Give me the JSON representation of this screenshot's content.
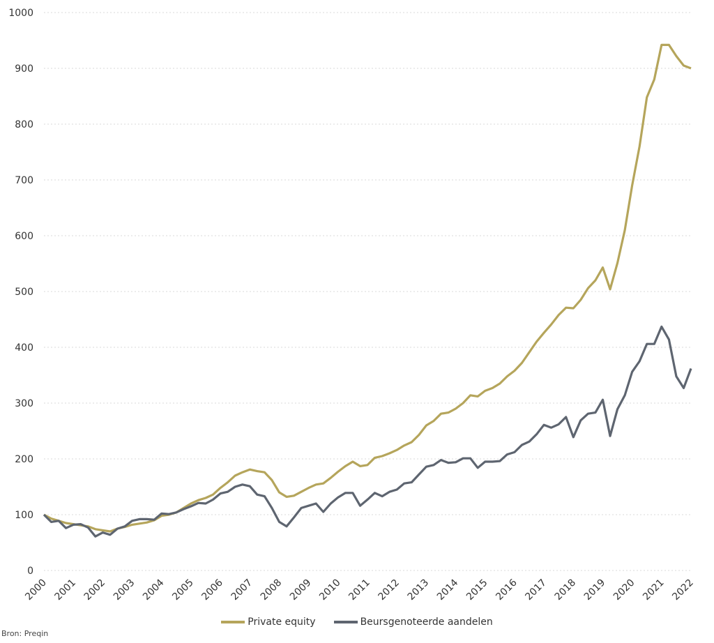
{
  "chart_data": {
    "type": "line",
    "title": "",
    "xlabel": "",
    "ylabel": "",
    "ylim": [
      0,
      1000
    ],
    "yticks": [
      0,
      100,
      200,
      300,
      400,
      500,
      600,
      700,
      800,
      900,
      1000
    ],
    "xlim": [
      2000,
      2022
    ],
    "xticks": [
      "2000",
      "2001",
      "2002",
      "2003",
      "2004",
      "2005",
      "2006",
      "2007",
      "2008",
      "2009",
      "2010",
      "2011",
      "2012",
      "2013",
      "2014",
      "2015",
      "2016",
      "2017",
      "2018",
      "2019",
      "2020",
      "2021",
      "2022"
    ],
    "grid": "horizontal dotted",
    "legend_position": "bottom",
    "x": [
      2000,
      2000.25,
      2000.5,
      2000.75,
      2001,
      2001.25,
      2001.5,
      2001.75,
      2002,
      2002.25,
      2002.5,
      2002.75,
      2003,
      2003.25,
      2003.5,
      2003.75,
      2004,
      2004.25,
      2004.5,
      2004.75,
      2005,
      2005.25,
      2005.5,
      2005.75,
      2006,
      2006.25,
      2006.5,
      2006.75,
      2007,
      2007.25,
      2007.5,
      2007.75,
      2008,
      2008.25,
      2008.5,
      2008.75,
      2009,
      2009.25,
      2009.5,
      2009.75,
      2010,
      2010.25,
      2010.5,
      2010.75,
      2011,
      2011.25,
      2011.5,
      2011.75,
      2012,
      2012.25,
      2012.5,
      2012.75,
      2013,
      2013.25,
      2013.5,
      2013.75,
      2014,
      2014.25,
      2014.5,
      2014.75,
      2015,
      2015.25,
      2015.5,
      2015.75,
      2016,
      2016.25,
      2016.5,
      2016.75,
      2017,
      2017.25,
      2017.5,
      2017.75,
      2018,
      2018.25,
      2018.5,
      2018.75,
      2019,
      2019.25,
      2019.5,
      2019.75,
      2020,
      2020.25,
      2020.5,
      2020.75,
      2021,
      2021.25,
      2021.5,
      2021.75,
      2022
    ],
    "series": [
      {
        "name": "Private equity",
        "color": "#b5a55b",
        "values": [
          100,
          93,
          89,
          85,
          83,
          81,
          79,
          74,
          72,
          70,
          75,
          78,
          82,
          84,
          86,
          90,
          98,
          100,
          104,
          112,
          120,
          126,
          130,
          136,
          148,
          158,
          170,
          176,
          181,
          178,
          176,
          162,
          140,
          132,
          134,
          141,
          148,
          154,
          156,
          166,
          177,
          187,
          195,
          187,
          189,
          202,
          205,
          210,
          216,
          224,
          230,
          243,
          260,
          268,
          281,
          283,
          290,
          300,
          314,
          312,
          322,
          327,
          335,
          348,
          358,
          372,
          391,
          410,
          426,
          441,
          458,
          471,
          470,
          485,
          506,
          520,
          543,
          504,
          551,
          610,
          690,
          760,
          848,
          880,
          942,
          942,
          922,
          905,
          900
        ]
      },
      {
        "name": "Beursgenoteerde aandelen",
        "color": "#5e6570",
        "values": [
          100,
          87,
          89,
          76,
          82,
          83,
          77,
          61,
          68,
          64,
          75,
          79,
          89,
          92,
          92,
          91,
          102,
          101,
          104,
          110,
          115,
          121,
          120,
          127,
          138,
          141,
          150,
          154,
          151,
          136,
          133,
          112,
          87,
          79,
          95,
          112,
          116,
          120,
          105,
          120,
          131,
          139,
          139,
          116,
          127,
          139,
          133,
          141,
          145,
          156,
          158,
          172,
          186,
          189,
          198,
          193,
          194,
          201,
          201,
          184,
          195,
          195,
          196,
          208,
          212,
          225,
          231,
          244,
          261,
          256,
          262,
          275,
          239,
          269,
          281,
          283,
          306,
          241,
          289,
          314,
          356,
          375,
          406,
          406,
          437,
          414,
          348,
          327,
          362
        ]
      }
    ]
  },
  "source": "Bron: Preqin"
}
